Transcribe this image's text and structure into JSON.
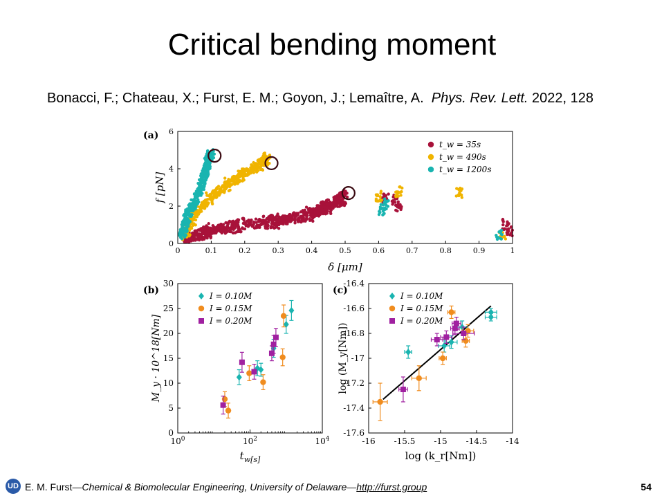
{
  "slide": {
    "title": "Critical bending moment",
    "citation": {
      "authors": "Bonacci, F.; Chateau, X.; Furst, E. M.; Goyon, J.; Lemaître, A.",
      "journal": "Phys. Rev. Lett.",
      "year_volume": "2022, 128"
    },
    "footer": {
      "logo_text": "UD",
      "author": "E. M. Furst",
      "sep1": "—",
      "affiliation": "Chemical & Biomolecular Engineering, University of Delaware",
      "sep2": "—",
      "link": "http://furst.group",
      "page_number": "54"
    }
  },
  "colors": {
    "crimson": "#a8123a",
    "gold": "#f0b400",
    "teal": "#19b4b0",
    "orange": "#f08c1e",
    "purple": "#a020a0",
    "fit_line": "#000000"
  },
  "chart_data": [
    {
      "type": "scatter",
      "panel_label": "(a)",
      "xlabel": "δ [μm]",
      "ylabel": "f [pN]",
      "xlim": [
        0,
        1
      ],
      "ylim": [
        0,
        6
      ],
      "xticks": [
        0,
        0.1,
        0.2,
        0.3,
        0.4,
        0.5,
        0.6,
        0.7,
        0.8,
        0.9,
        1
      ],
      "yticks": [
        0,
        2,
        4,
        6
      ],
      "legend_position": "top-right",
      "legend": [
        "t_w = 35s",
        "t_w = 490s",
        "t_w = 1200s"
      ],
      "series": [
        {
          "name": "t_w = 35s",
          "color": "#a8123a",
          "trend": [
            [
              0.02,
              0.2
            ],
            [
              0.1,
              0.7
            ],
            [
              0.2,
              1.0
            ],
            [
              0.3,
              1.2
            ],
            [
              0.4,
              1.6
            ],
            [
              0.45,
              2.0
            ],
            [
              0.5,
              2.5
            ]
          ],
          "critical_point": [
            0.51,
            2.7
          ],
          "scattered": [
            [
              0.62,
              2.4
            ],
            [
              0.65,
              2.3
            ],
            [
              0.66,
              2.0
            ],
            [
              0.98,
              1.0
            ],
            [
              0.99,
              0.7
            ]
          ]
        },
        {
          "name": "t_w = 490s",
          "color": "#f0b400",
          "trend": [
            [
              0.02,
              0.3
            ],
            [
              0.05,
              1.5
            ],
            [
              0.1,
              2.5
            ],
            [
              0.15,
              3.2
            ],
            [
              0.2,
              3.7
            ],
            [
              0.25,
              4.3
            ],
            [
              0.27,
              4.6
            ]
          ],
          "critical_point": [
            0.28,
            4.3
          ],
          "scattered": [
            [
              0.6,
              2.5
            ],
            [
              0.66,
              2.8
            ],
            [
              0.84,
              2.7
            ],
            [
              0.97,
              0.5
            ]
          ]
        },
        {
          "name": "t_w = 1200s",
          "color": "#19b4b0",
          "trend": [
            [
              0.01,
              0.3
            ],
            [
              0.03,
              1.5
            ],
            [
              0.06,
              2.5
            ],
            [
              0.08,
              3.6
            ],
            [
              0.09,
              4.4
            ],
            [
              0.1,
              4.8
            ]
          ],
          "critical_point": [
            0.11,
            4.7
          ],
          "scattered": [
            [
              0.62,
              2.1
            ],
            [
              0.61,
              1.8
            ],
            [
              0.96,
              0.5
            ]
          ]
        }
      ]
    },
    {
      "type": "scatter",
      "panel_label": "(b)",
      "xlabel": "t_w[s]",
      "ylabel": "M_y · 10^18[Nm]",
      "xscale": "log",
      "xlim": [
        1,
        10000
      ],
      "ylim": [
        0,
        30
      ],
      "xtick_labels": [
        "10^0",
        "10^2",
        "10^4"
      ],
      "yticks": [
        0,
        5,
        10,
        15,
        20,
        25,
        30
      ],
      "legend_position": "top-left",
      "legend": [
        "I = 0.10M",
        "I = 0.15M",
        "I = 0.20M"
      ],
      "series": [
        {
          "name": "I = 0.10M",
          "color": "#19b4b0",
          "marker": "diamond",
          "points": [
            [
              50,
              11.2,
              1.5
            ],
            [
              160,
              13.0,
              1.5
            ],
            [
              200,
              12.7,
              1.3
            ],
            [
              450,
              17.0,
              1.8
            ],
            [
              1000,
              21.8,
              1.8
            ],
            [
              1400,
              24.6,
              2.0
            ]
          ]
        },
        {
          "name": "I = 0.15M",
          "color": "#f08c1e",
          "marker": "circle",
          "points": [
            [
              20,
              6.8,
              1.5
            ],
            [
              25,
              4.5,
              1.5
            ],
            [
              95,
              12.0,
              1.5
            ],
            [
              230,
              10.2,
              1.5
            ],
            [
              850,
              23.5,
              2.2
            ],
            [
              800,
              15.2,
              1.7
            ]
          ]
        },
        {
          "name": "I = 0.20M",
          "color": "#a020a0",
          "marker": "square",
          "points": [
            [
              18,
              5.6,
              1.8
            ],
            [
              60,
              14.2,
              2.0
            ],
            [
              130,
              12.3,
              1.5
            ],
            [
              400,
              16.0,
              1.5
            ],
            [
              450,
              17.8,
              1.8
            ],
            [
              520,
              19.2,
              1.8
            ]
          ]
        }
      ]
    },
    {
      "type": "scatter",
      "panel_label": "(c)",
      "xlabel": "log (k_r[Nm])",
      "ylabel": "log (M_y[Nm])",
      "xlim": [
        -16,
        -14
      ],
      "ylim": [
        -17.6,
        -16.4
      ],
      "xtick_labels": [
        "-16",
        "-15.5",
        "-15",
        "-14.5",
        "-14"
      ],
      "ytick_labels": [
        "-17.6",
        "-17.4",
        "-17.2",
        "-17",
        "-16.8",
        "-16.6",
        "-16.4"
      ],
      "legend_position": "top-left",
      "legend": [
        "I = 0.10M",
        "I = 0.15M",
        "I = 0.20M"
      ],
      "fit_line": [
        [
          -15.8,
          -17.33
        ],
        [
          -14.3,
          -16.58
        ]
      ],
      "series": [
        {
          "name": "I = 0.10M",
          "color": "#19b4b0",
          "marker": "diamond",
          "points": [
            [
              -15.45,
              -16.95,
              0.05,
              0.05
            ],
            [
              -14.95,
              -16.9,
              0.08,
              0.05
            ],
            [
              -14.85,
              -16.87,
              0.08,
              0.05
            ],
            [
              -14.7,
              -16.75,
              0.08,
              0.05
            ],
            [
              -14.3,
              -16.63,
              0.08,
              0.03
            ],
            [
              -14.3,
              -16.67,
              0.08,
              0.03
            ]
          ]
        },
        {
          "name": "I = 0.15M",
          "color": "#f08c1e",
          "marker": "circle",
          "points": [
            [
              -15.84,
              -17.35,
              0.1,
              0.15
            ],
            [
              -15.3,
              -17.16,
              0.1,
              0.1
            ],
            [
              -14.97,
              -17.0,
              0.05,
              0.05
            ],
            [
              -14.85,
              -16.63,
              0.05,
              0.05
            ],
            [
              -14.62,
              -16.78,
              0.08,
              0.05
            ],
            [
              -14.65,
              -16.86,
              0.05,
              0.05
            ]
          ]
        },
        {
          "name": "I = 0.20M",
          "color": "#a020a0",
          "marker": "square",
          "points": [
            [
              -15.52,
              -17.25,
              0.06,
              0.1
            ],
            [
              -15.05,
              -16.85,
              0.08,
              0.05
            ],
            [
              -14.92,
              -16.83,
              0.08,
              0.05
            ],
            [
              -14.8,
              -16.76,
              0.06,
              0.05
            ],
            [
              -14.78,
              -16.72,
              0.06,
              0.05
            ],
            [
              -14.68,
              -16.8,
              0.15,
              0.05
            ]
          ]
        }
      ]
    }
  ]
}
